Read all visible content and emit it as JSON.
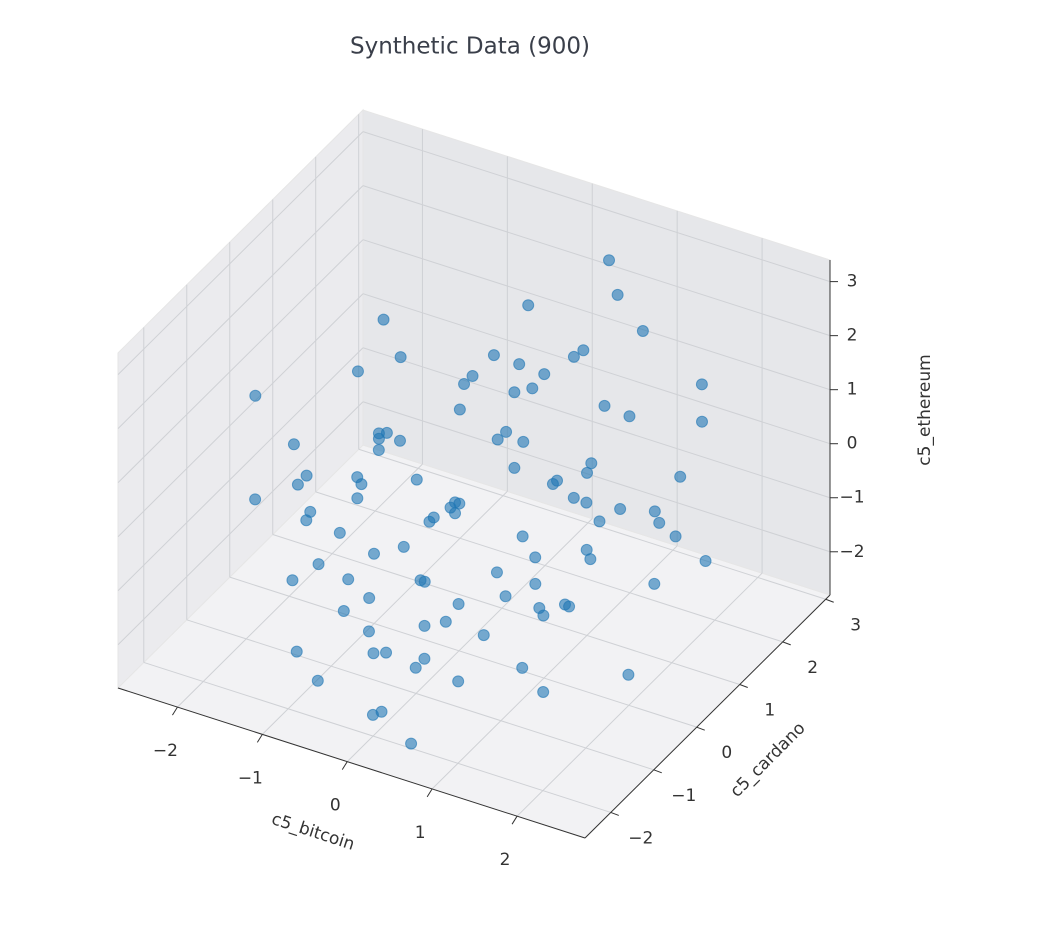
{
  "chart_data": {
    "type": "scatter3d",
    "title": "Synthetic Data (900)",
    "xlabel": "c5_bitcoin",
    "ylabel": "c5_cardano",
    "zlabel": "c5_ethereum",
    "color": "#1f77b4",
    "xlim": [
      -2.7,
      2.8
    ],
    "ylim": [
      -2.6,
      3.1
    ],
    "zlim": [
      -2.8,
      3.4
    ],
    "xticks": [
      {
        "value": -2,
        "label": "−2"
      },
      {
        "value": -1,
        "label": "−1"
      },
      0,
      1,
      2
    ],
    "yticks": [
      {
        "value": -2,
        "label": "−2"
      },
      {
        "value": -1,
        "label": "−1"
      },
      0,
      1,
      2,
      3
    ],
    "zticks": [
      {
        "value": -2,
        "label": "−2"
      },
      {
        "value": -1,
        "label": "−1"
      },
      0,
      1,
      2,
      3
    ],
    "x": [
      -0.3,
      0.4,
      1.2,
      -1.5,
      0.8,
      -0.1,
      2.1,
      -2.4,
      0.6,
      -0.9,
      1.7,
      -0.4,
      0.2,
      -1.1,
      0.9,
      1.4,
      -0.7,
      0.1,
      -2.0,
      2.5,
      0.3,
      -0.5,
      1.0,
      -1.3,
      0.7,
      -0.2,
      1.8,
      -0.8,
      0.5,
      -1.7,
      1.3,
      0.0,
      -0.6,
      2.2,
      -1.0,
      0.4,
      -0.3,
      1.1,
      -2.3,
      0.9,
      -0.1,
      1.5,
      -1.4,
      0.6,
      -0.5,
      2.0,
      -0.9,
      0.2,
      1.6,
      -1.9,
      0.8,
      -0.4,
      0.3,
      -1.2,
      1.2,
      -0.7,
      2.6,
      -0.2,
      0.5,
      -1.6,
      1.9,
      -1.1,
      0.1,
      0.7,
      -2.1,
      1.4,
      -0.6,
      0.0,
      1.0,
      -0.8,
      2.3,
      -1.3,
      0.4,
      -0.3,
      1.7,
      -2.5,
      0.6,
      -0.1,
      1.1,
      -1.0,
      0.9,
      -0.5,
      2.4,
      -1.8,
      0.2,
      1.3,
      -0.9,
      0.7,
      -0.2,
      1.5,
      -1.4,
      0.3,
      -0.6,
      0.8,
      -2.2,
      1.8,
      -0.4,
      0.1,
      1.2,
      -1.5
    ],
    "y": [
      0.5,
      -0.8,
      0.3,
      1.1,
      -1.6,
      0.0,
      -0.4,
      0.9,
      2.2,
      -0.2,
      1.3,
      -1.2,
      0.7,
      -0.6,
      2.5,
      -0.3,
      0.4,
      -2.0,
      1.6,
      0.1,
      -0.9,
      1.8,
      -1.4,
      0.2,
      0.6,
      -0.5,
      1.0,
      -1.1,
      0.3,
      2.0,
      -0.7,
      1.4,
      -0.1,
      0.8,
      -1.8,
      2.7,
      0.5,
      -0.4,
      -0.2,
      1.2,
      -1.5,
      0.0,
      0.9,
      -2.3,
      0.4,
      1.7,
      -0.8,
      1.1,
      -0.6,
      0.2,
      0.7,
      -1.3,
      2.3,
      0.1,
      -0.9,
      1.5,
      0.6,
      -1.7,
      0.3,
      -0.3,
      1.9,
      0.8,
      -1.0,
      -0.5,
      0.4,
      1.2,
      -2.1,
      0.9,
      -0.2,
      1.6,
      0.0,
      -0.7,
      2.9,
      0.6,
      -1.4,
      0.2,
      1.0,
      -0.6,
      0.5,
      -1.9,
      1.3,
      0.3,
      -0.8,
      1.8,
      -1.2,
      0.7,
      0.1,
      -0.3,
      2.1,
      -1.0,
      0.4,
      -1.6,
      1.5,
      -0.1,
      0.8,
      -0.5,
      2.4,
      -2.2,
      0.6,
      1.1
    ],
    "z": [
      -0.8,
      -1.1,
      0.4,
      -0.5,
      -1.7,
      -0.2,
      1.2,
      -0.9,
      0.3,
      -1.3,
      -0.6,
      -2.1,
      0.8,
      -0.7,
      1.6,
      -1.0,
      -0.3,
      -2.3,
      0.1,
      0.5,
      -1.4,
      1.0,
      -0.9,
      -0.4,
      2.2,
      -1.2,
      -0.1,
      -1.6,
      0.6,
      0.2,
      -0.8,
      1.4,
      -1.1,
      0.9,
      -1.9,
      2.5,
      -0.6,
      -0.2,
      -1.0,
      0.0,
      -1.7,
      0.7,
      -0.5,
      -2.4,
      -0.9,
      1.8,
      -1.3,
      0.3,
      -0.7,
      -1.5,
      0.2,
      -1.0,
      1.1,
      -0.4,
      -1.8,
      0.6,
      -0.3,
      -1.2,
      2.0,
      -0.8,
      0.9,
      -0.1,
      -1.5,
      -0.6,
      -1.1,
      1.3,
      -2.0,
      0.4,
      -0.9,
      0.0,
      -0.4,
      -1.3,
      1.7,
      -0.7,
      -1.6,
      0.5,
      -0.2,
      -1.1,
      2.8,
      -0.5,
      0.1,
      -0.9,
      -1.4,
      1.0,
      -1.9,
      -0.3,
      0.7,
      -1.2,
      0.3,
      -0.6,
      -1.0,
      -1.7,
      0.8,
      -0.2,
      -1.3,
      0.2,
      1.5,
      -2.2,
      -0.8,
      -0.4
    ]
  }
}
